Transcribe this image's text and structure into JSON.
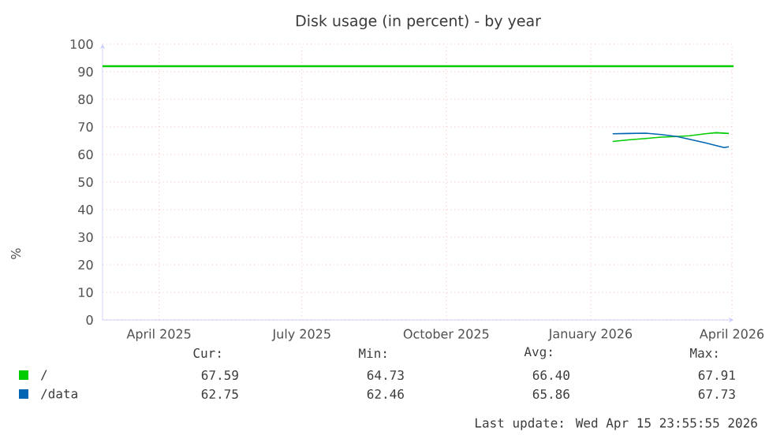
{
  "chart_data": {
    "type": "line",
    "title": "Disk usage (in percent) - by year",
    "ylabel": "%",
    "xlim": [
      "2025-02-24",
      "2026-04-02"
    ],
    "xticks": [
      {
        "value": "2025-04-01",
        "label": "April 2025"
      },
      {
        "value": "2025-07-01",
        "label": "July 2025"
      },
      {
        "value": "2025-10-01",
        "label": "October 2025"
      },
      {
        "value": "2026-01-01",
        "label": "January 2026"
      },
      {
        "value": "2026-04-01",
        "label": "April 2026"
      }
    ],
    "ylim": [
      0,
      100
    ],
    "yticks": [
      0,
      10,
      20,
      30,
      40,
      50,
      60,
      70,
      80,
      90,
      100
    ],
    "grid": true,
    "legend": "bottom",
    "series": [
      {
        "name": "/",
        "color": "#00cc00",
        "x": [
          "2026-01-15",
          "2026-01-25",
          "2026-02-05",
          "2026-02-15",
          "2026-02-25",
          "2026-03-05",
          "2026-03-15",
          "2026-03-22",
          "2026-03-30"
        ],
        "values": [
          64.7,
          65.3,
          65.8,
          66.3,
          66.5,
          66.8,
          67.5,
          67.9,
          67.6
        ]
      },
      {
        "name": "/data",
        "color": "#0066b3",
        "x": [
          "2026-01-15",
          "2026-01-25",
          "2026-02-05",
          "2026-02-15",
          "2026-02-25",
          "2026-03-05",
          "2026-03-15",
          "2026-03-22",
          "2026-03-27",
          "2026-03-30"
        ],
        "values": [
          67.5,
          67.6,
          67.7,
          67.2,
          66.5,
          65.5,
          64.2,
          63.2,
          62.5,
          62.8
        ]
      }
    ],
    "ref_lines": [
      {
        "axis": "y",
        "value": 92,
        "color": "#00cc00"
      }
    ],
    "annotations": [
      "Cur:",
      "Min:",
      "Avg:",
      "Max:",
      "67.59",
      "64.73",
      "66.40",
      "67.91",
      "62.75",
      "62.46",
      "65.86",
      "67.73",
      "Last update: Wed Apr 15 23:55:55 2026"
    ]
  }
}
